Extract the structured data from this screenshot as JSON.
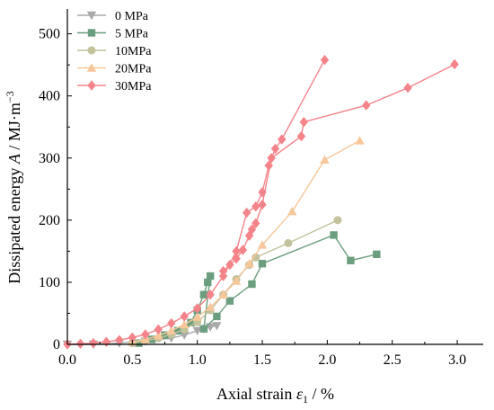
{
  "chart_data": {
    "type": "line",
    "xlabel": {
      "prefix": "Axial strain ",
      "symbol": "ε",
      "sub": "1",
      "suffix": " / %"
    },
    "ylabel": {
      "prefix": "Dissipated energy ",
      "symbol": "A",
      "suffix": " / MJ·m",
      "sup": "−3"
    },
    "xlim": [
      0,
      3.2
    ],
    "ylim": [
      0,
      540
    ],
    "xticks": [
      0.0,
      0.5,
      1.0,
      1.5,
      2.0,
      2.5,
      3.0
    ],
    "xtick_labels": [
      "0.0",
      "0.5",
      "1.0",
      "1.5",
      "2.0",
      "2.5",
      "3.0"
    ],
    "yticks": [
      0,
      100,
      200,
      300,
      400,
      500
    ],
    "ytick_labels": [
      "0",
      "100",
      "200",
      "300",
      "400",
      "500"
    ],
    "legend_position": "top-left",
    "series": [
      {
        "name": "0 MPa",
        "color": "#a9a9a9",
        "marker": "triangle-down",
        "points": [
          [
            0.0,
            0
          ],
          [
            0.2,
            0
          ],
          [
            0.4,
            2
          ],
          [
            0.6,
            5
          ],
          [
            0.8,
            10
          ],
          [
            0.9,
            15
          ],
          [
            1.0,
            22
          ],
          [
            1.05,
            25
          ],
          [
            1.1,
            28
          ],
          [
            1.15,
            30
          ]
        ]
      },
      {
        "name": "5 MPa",
        "color": "#6b9e7e",
        "marker": "square",
        "points": [
          [
            0.55,
            2
          ],
          [
            0.65,
            8
          ],
          [
            0.75,
            15
          ],
          [
            0.85,
            22
          ],
          [
            0.95,
            35
          ],
          [
            1.0,
            55
          ],
          [
            1.05,
            80
          ],
          [
            1.08,
            100
          ],
          [
            1.1,
            110
          ],
          [
            1.05,
            25
          ],
          [
            1.15,
            45
          ],
          [
            1.25,
            70
          ],
          [
            1.42,
            97
          ],
          [
            1.5,
            130
          ],
          [
            2.05,
            176
          ],
          [
            2.18,
            135
          ],
          [
            2.38,
            145
          ]
        ]
      },
      {
        "name": "10MPa",
        "color": "#c2c29b",
        "marker": "circle",
        "points": [
          [
            0.5,
            2
          ],
          [
            0.6,
            6
          ],
          [
            0.7,
            10
          ],
          [
            0.8,
            16
          ],
          [
            0.9,
            24
          ],
          [
            1.0,
            36
          ],
          [
            1.1,
            55
          ],
          [
            1.2,
            80
          ],
          [
            1.3,
            105
          ],
          [
            1.4,
            128
          ],
          [
            1.45,
            140
          ],
          [
            1.7,
            163
          ],
          [
            2.08,
            200
          ]
        ]
      },
      {
        "name": "20MPa",
        "color": "#f6c79a",
        "marker": "triangle-up",
        "points": [
          [
            0.5,
            4
          ],
          [
            0.6,
            8
          ],
          [
            0.7,
            14
          ],
          [
            0.8,
            22
          ],
          [
            0.9,
            32
          ],
          [
            1.0,
            44
          ],
          [
            1.1,
            60
          ],
          [
            1.2,
            80
          ],
          [
            1.3,
            102
          ],
          [
            1.4,
            130
          ],
          [
            1.5,
            160
          ],
          [
            1.73,
            214
          ],
          [
            1.98,
            297
          ],
          [
            2.25,
            328
          ]
        ]
      },
      {
        "name": "30MPa",
        "color": "#f4838a",
        "marker": "diamond",
        "points_a": [
          [
            0.0,
            0
          ],
          [
            0.1,
            1
          ],
          [
            0.2,
            2
          ],
          [
            0.3,
            4
          ],
          [
            0.4,
            7
          ],
          [
            0.5,
            11
          ],
          [
            0.6,
            16
          ],
          [
            0.7,
            24
          ],
          [
            0.8,
            34
          ],
          [
            0.9,
            45
          ],
          [
            1.0,
            58
          ],
          [
            1.1,
            80
          ],
          [
            1.2,
            110
          ],
          [
            1.3,
            150
          ],
          [
            1.38,
            212
          ],
          [
            1.45,
            222
          ],
          [
            1.5,
            245
          ],
          [
            1.55,
            288
          ],
          [
            1.6,
            315
          ],
          [
            1.65,
            330
          ],
          [
            1.98,
            458
          ]
        ],
        "points_b": [
          [
            1.2,
            118
          ],
          [
            1.25,
            128
          ],
          [
            1.3,
            138
          ],
          [
            1.35,
            152
          ],
          [
            1.4,
            175
          ],
          [
            1.42,
            185
          ],
          [
            1.45,
            195
          ],
          [
            1.5,
            225
          ],
          [
            1.57,
            300
          ],
          [
            1.8,
            335
          ],
          [
            1.82,
            358
          ],
          [
            2.3,
            385
          ],
          [
            2.62,
            413
          ],
          [
            2.98,
            451
          ]
        ]
      }
    ]
  }
}
